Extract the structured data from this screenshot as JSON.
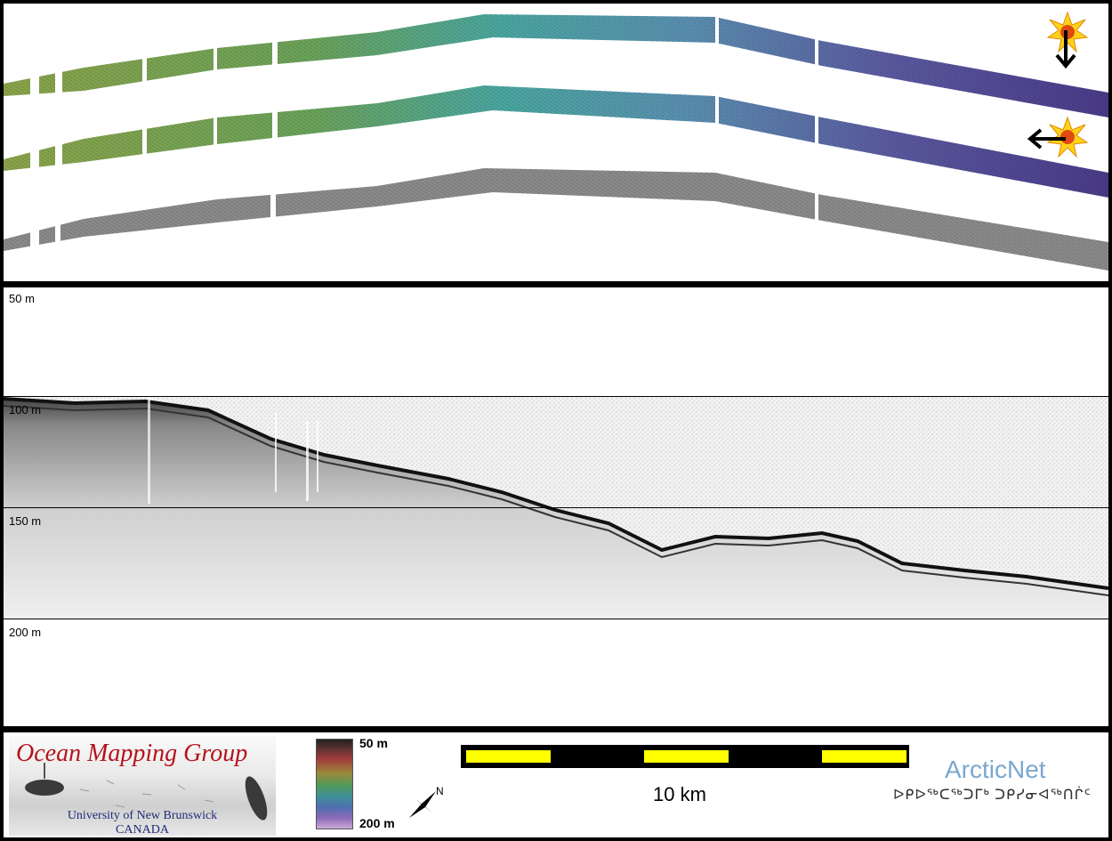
{
  "profile": {
    "depth_labels": [
      "50 m",
      "100 m",
      "150 m",
      "200 m"
    ]
  },
  "legend": {
    "logo_title": "Ocean Mapping Group",
    "logo_university": "University of New Brunswick",
    "logo_country": "CANADA",
    "colorbar_top": "50 m",
    "colorbar_bottom": "200 m",
    "north_label": "N",
    "scale_label": "10 km",
    "partner_name": "ArcticNet",
    "partner_name_inuktitut": "ᐅᑭᐅᖅᑕᖅᑐᒥᒃ ᑐᑭᓯᓂᐊᖅᑎᒌᑦ"
  },
  "colors": {
    "swath_green": "#7a9a4a",
    "swath_teal": "#4a9a9a",
    "swath_purple": "#5a4a90",
    "backscatter_gray": "#777777",
    "scale_yellow": "#ffff00",
    "logo_red": "#b3141c",
    "partner_blue": "#7aa8cf"
  },
  "icons": [
    "sun-illumination-icon",
    "arrow-down-icon",
    "arrow-left-icon",
    "north-arrow-icon"
  ]
}
